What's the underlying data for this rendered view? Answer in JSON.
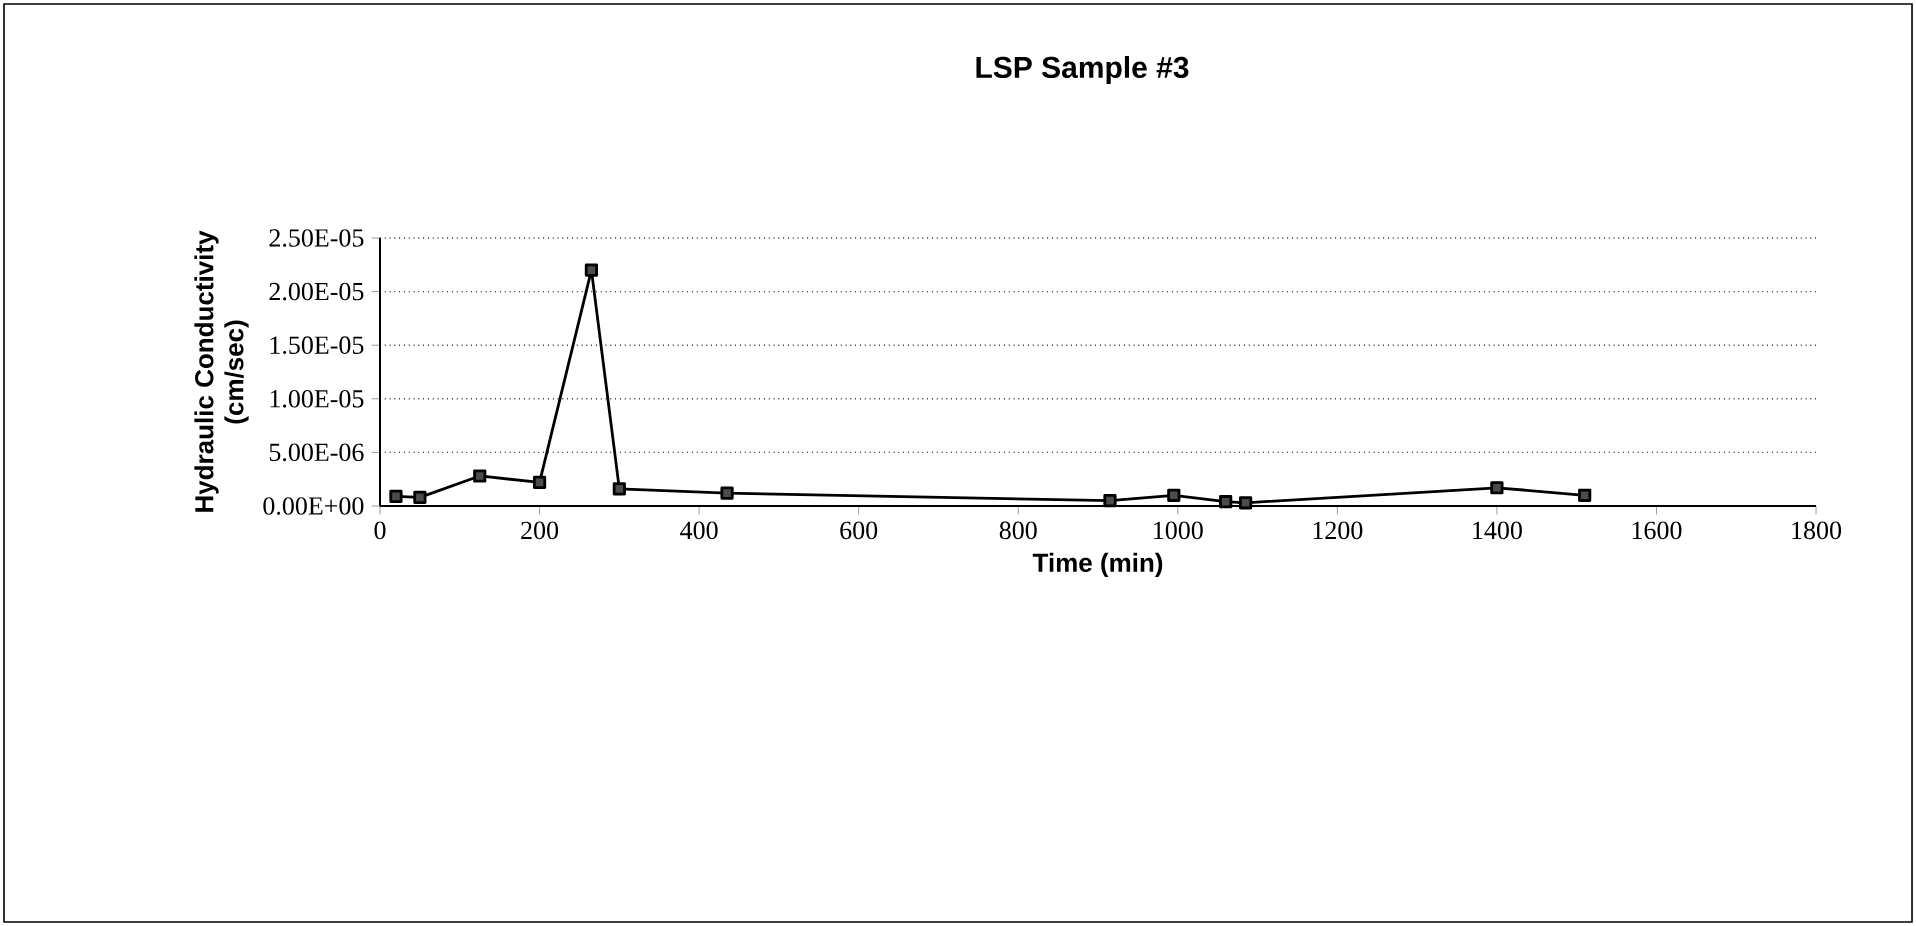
{
  "chart_data": {
    "type": "line",
    "title": "LSP Sample #3",
    "xlabel": "Time (min)",
    "ylabel": "Hydraulic Conductivity\n(cm/sec)",
    "x": [
      20,
      50,
      125,
      200,
      265,
      300,
      435,
      915,
      995,
      1060,
      1085,
      1400,
      1510
    ],
    "series": [
      {
        "color": "#000000",
        "values": [
          9e-07,
          8e-07,
          2.8e-06,
          2.2e-06,
          2.2e-05,
          1.6e-06,
          1.2e-06,
          5e-07,
          1e-06,
          4e-07,
          3e-07,
          1.7e-06,
          1e-06
        ]
      }
    ],
    "xlim": [
      0,
      1800
    ],
    "xticks": [
      0,
      200,
      400,
      600,
      800,
      1000,
      1200,
      1400,
      1600,
      1800
    ],
    "ylim": [
      0,
      2.5e-05
    ],
    "yticks": [
      {
        "value": 0,
        "label": "0.00E+00"
      },
      {
        "value": 5e-06,
        "label": "5.00E-06"
      },
      {
        "value": 1e-05,
        "label": "1.00E-05"
      },
      {
        "value": 1.5e-05,
        "label": "1.50E-05"
      },
      {
        "value": 2e-05,
        "label": "2.00E-05"
      },
      {
        "value": 2.5e-05,
        "label": "2.50E-05"
      }
    ],
    "grid": "y",
    "marker": "square",
    "line_style": "solid",
    "legend": false
  }
}
